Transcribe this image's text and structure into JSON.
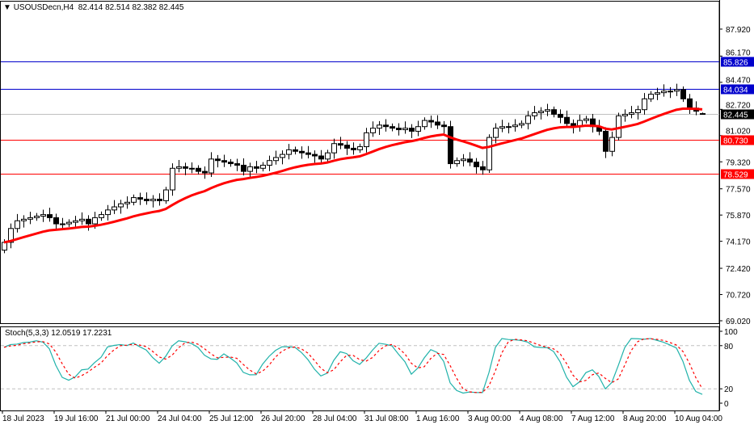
{
  "header": {
    "symbol": "USOUSDecn,H4",
    "ohlc": "82.414 82.514 82.382 82.445",
    "collapse_icon": "triangle-down-icon"
  },
  "stoch": {
    "label": "Stoch(5,3,3) 12.0519 17.2231",
    "levels": [
      "100",
      "80",
      "20",
      "0"
    ],
    "main_color": "#20b2aa",
    "signal_color": "#ff0000"
  },
  "chart_data": {
    "type": "candlestick",
    "symbol": "USOUSDecn",
    "timeframe": "H4",
    "price_ticks": [
      87.92,
      86.17,
      84.47,
      82.72,
      81.02,
      79.32,
      77.57,
      75.87,
      74.17,
      72.42,
      70.72,
      69.02
    ],
    "price_tick_labels": [
      "87.920",
      "86.170",
      "84.470",
      "82.720",
      "81.020",
      "79.320",
      "77.570",
      "75.870",
      "74.170",
      "72.420",
      "70.720",
      "69.020"
    ],
    "ylim": [
      69.02,
      87.92
    ],
    "time_labels": [
      "18 Jul 2023",
      "19 Jul 16:00",
      "21 Jul 00:00",
      "24 Jul 04:00",
      "25 Jul 12:00",
      "26 Jul 20:00",
      "28 Jul 04:00",
      "31 Jul 08:00",
      "1 Aug 16:00",
      "3 Aug 00:00",
      "4 Aug 08:00",
      "7 Aug 12:00",
      "8 Aug 20:00",
      "10 Aug 04:00"
    ],
    "closes": [
      74.1,
      75.0,
      75.5,
      75.6,
      75.7,
      75.8,
      75.9,
      75.7,
      75.3,
      75.3,
      75.4,
      75.5,
      75.6,
      75.3,
      75.7,
      75.9,
      76.2,
      76.4,
      76.6,
      76.7,
      77.0,
      76.9,
      76.8,
      76.9,
      76.8,
      77.5,
      78.9,
      79.0,
      78.9,
      78.9,
      78.7,
      78.6,
      79.5,
      79.4,
      79.3,
      79.2,
      79.1,
      78.7,
      79.0,
      78.9,
      79.1,
      79.4,
      79.6,
      79.8,
      80.1,
      80.0,
      79.9,
      79.8,
      79.7,
      79.5,
      79.9,
      80.5,
      80.4,
      80.2,
      80.1,
      80.3,
      81.2,
      81.5,
      81.7,
      81.6,
      81.5,
      81.4,
      81.5,
      81.3,
      81.6,
      82.0,
      81.9,
      81.7,
      81.6,
      79.2,
      79.4,
      79.5,
      79.3,
      79.0,
      78.8,
      80.9,
      81.5,
      81.6,
      81.6,
      81.7,
      81.8,
      82.3,
      82.5,
      82.6,
      82.7,
      82.4,
      82.2,
      81.8,
      81.6,
      82.0,
      82.1,
      81.6,
      81.3,
      80.0,
      80.9,
      82.3,
      82.4,
      82.5,
      82.7,
      83.4,
      83.7,
      83.8,
      83.9,
      83.9,
      84.0,
      83.4,
      82.8,
      82.6,
      82.445
    ],
    "last_bar": {
      "open": 82.414,
      "high": 82.514,
      "low": 82.382,
      "close": 82.445
    },
    "moving_average_color": "#ff0000",
    "horizontal_levels": [
      {
        "value": 85.826,
        "label": "85.826",
        "color": "#0000cc"
      },
      {
        "value": 84.034,
        "label": "84.034",
        "color": "#0000cc"
      },
      {
        "value": 80.73,
        "label": "80.730",
        "color": "#ff0000"
      },
      {
        "value": 78.529,
        "label": "78.529",
        "color": "#ff0000"
      }
    ],
    "bid_line": {
      "value": 82.445,
      "label": "82.445",
      "color": "#c0c0c0"
    }
  }
}
